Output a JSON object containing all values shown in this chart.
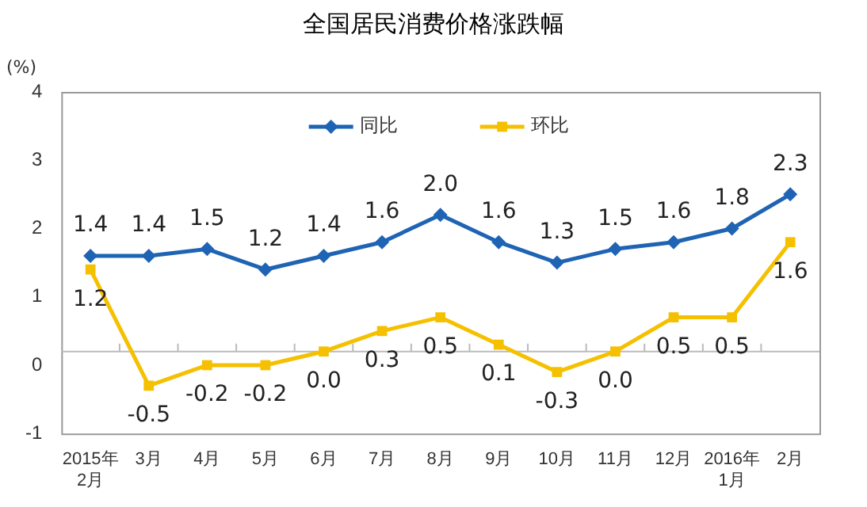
{
  "chart_data": {
    "type": "line",
    "title": "全国居民消费价格涨跌幅",
    "ylabel": "(%)",
    "categories": [
      "2015年\n2月",
      "3月",
      "4月",
      "5月",
      "6月",
      "7月",
      "8月",
      "9月",
      "10月",
      "11月",
      "12月",
      "2016年\n1月",
      "2月"
    ],
    "series": [
      {
        "name": "同比",
        "color": "#1f64b4",
        "marker": "diamond",
        "values": [
          1.4,
          1.4,
          1.5,
          1.2,
          1.4,
          1.6,
          2.0,
          1.6,
          1.3,
          1.5,
          1.6,
          1.8,
          2.3
        ],
        "value_labels": [
          "1.4",
          "1.4",
          "1.5",
          "1.2",
          "1.4",
          "1.6",
          "2.0",
          "1.6",
          "1.3",
          "1.5",
          "1.6",
          "1.8",
          "2.3"
        ]
      },
      {
        "name": "环比",
        "color": "#f5c000",
        "marker": "square",
        "values": [
          1.2,
          -0.5,
          -0.2,
          -0.2,
          0.0,
          0.3,
          0.5,
          0.1,
          -0.3,
          0.0,
          0.5,
          0.5,
          1.6
        ],
        "value_labels": [
          "1.2",
          "-0.5",
          "-0.2",
          "-0.2",
          "0.0",
          "0.3",
          "0.5",
          "0.1",
          "-0.3",
          "0.0",
          "0.5",
          "0.5",
          "1.6"
        ]
      }
    ],
    "ylim": [
      -1.2,
      3.8
    ],
    "yticks": [
      {
        "value": -1.2,
        "label": "-1"
      },
      {
        "value": -0.2,
        "label": "0"
      },
      {
        "value": 0.8,
        "label": "1"
      },
      {
        "value": 1.8,
        "label": "2"
      },
      {
        "value": 2.8,
        "label": "3"
      },
      {
        "value": 3.8,
        "label": "4"
      }
    ],
    "grid": false,
    "legend": "top",
    "line_style": "solid"
  }
}
